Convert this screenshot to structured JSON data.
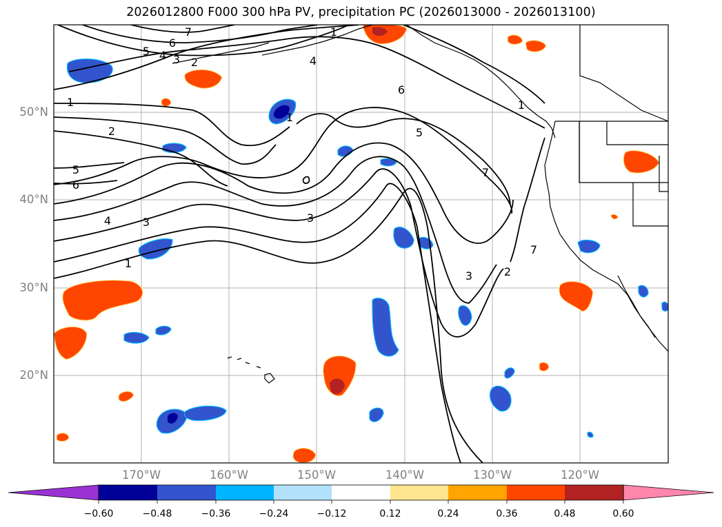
{
  "title": "2026012800 F000 300 hPa PV, precipitation PC (2026013000 - 2026013100)",
  "axes": {
    "lat_labels": [
      "50°N",
      "40°N",
      "30°N",
      "20°N"
    ],
    "lon_labels": [
      "170°W",
      "160°W",
      "150°W",
      "140°W",
      "130°W",
      "120°W"
    ]
  },
  "contour_labels": [
    "7",
    "1",
    "6",
    "5",
    "4",
    "3",
    "2",
    "4",
    "1",
    "1",
    "2",
    "6",
    "5",
    "6",
    "7",
    "5",
    "4",
    "3",
    "3",
    "1",
    "7",
    "3",
    "2",
    "1"
  ],
  "colorbar": {
    "colors": [
      "#9a33d3",
      "#000099",
      "#3254cc",
      "#00b4ff",
      "#b1e1fb",
      "#ffffff",
      "#ffe58e",
      "#ffa400",
      "#ff4600",
      "#b22222",
      "#ff86ad"
    ],
    "ticks": [
      "−0.60",
      "−0.48",
      "−0.36",
      "−0.24",
      "−0.12",
      "0.12",
      "0.24",
      "0.36",
      "0.48",
      "0.60"
    ]
  },
  "colors": {
    "grid": "#b0b0b0",
    "contour": "#000000",
    "negative_fill": "#3254cc",
    "negative_core": "#000099",
    "negative_edge": "#00b4ff",
    "positive_fill": "#ff4600",
    "positive_core": "#b22222",
    "positive_edge": "#ffe58e"
  }
}
